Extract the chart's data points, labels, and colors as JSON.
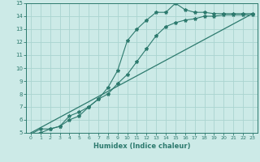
{
  "background_color": "#cceae7",
  "grid_color": "#aad4d0",
  "line_color": "#2d7a6e",
  "spine_color": "#2d7a6e",
  "xlabel": "Humidex (Indice chaleur)",
  "xlim": [
    -0.5,
    23.5
  ],
  "ylim": [
    5,
    15
  ],
  "xticks": [
    0,
    1,
    2,
    3,
    4,
    5,
    6,
    7,
    8,
    9,
    10,
    11,
    12,
    13,
    14,
    15,
    16,
    17,
    18,
    19,
    20,
    21,
    22,
    23
  ],
  "yticks": [
    5,
    6,
    7,
    8,
    9,
    10,
    11,
    12,
    13,
    14,
    15
  ],
  "series": [
    {
      "x": [
        0,
        1,
        2,
        3,
        4,
        5,
        6,
        7,
        8,
        9,
        10,
        11,
        12,
        13,
        14,
        15,
        16,
        17,
        18,
        19,
        20,
        21,
        22,
        23
      ],
      "y": [
        4.9,
        5.3,
        5.3,
        5.5,
        6.3,
        6.6,
        7.0,
        7.6,
        8.5,
        9.8,
        12.1,
        13.0,
        13.7,
        14.3,
        14.3,
        15.0,
        14.5,
        14.3,
        14.3,
        14.2,
        14.2,
        14.2,
        14.2,
        14.2
      ]
    },
    {
      "x": [
        0,
        1,
        2,
        3,
        4,
        5,
        6,
        7,
        8,
        9,
        10,
        11,
        12,
        13,
        14,
        15,
        16,
        17,
        18,
        19,
        20,
        21,
        22,
        23
      ],
      "y": [
        4.9,
        5.0,
        5.3,
        5.5,
        6.0,
        6.3,
        7.0,
        7.6,
        8.0,
        8.8,
        9.5,
        10.5,
        11.5,
        12.5,
        13.2,
        13.5,
        13.7,
        13.8,
        14.0,
        14.0,
        14.1,
        14.1,
        14.1,
        14.1
      ]
    },
    {
      "x": [
        0,
        23
      ],
      "y": [
        5.0,
        14.2
      ]
    }
  ]
}
